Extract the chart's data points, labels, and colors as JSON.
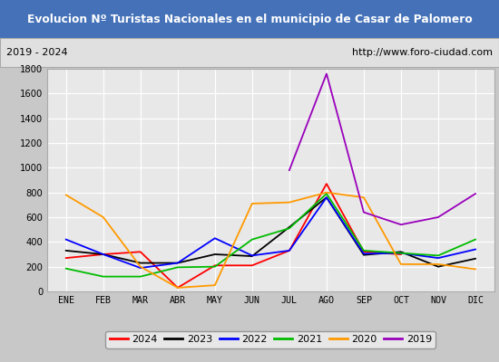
{
  "title": "Evolucion Nº Turistas Nacionales en el municipio de Casar de Palomero",
  "subtitle_left": "2019 - 2024",
  "subtitle_right": "http://www.foro-ciudad.com",
  "months": [
    "ENE",
    "FEB",
    "MAR",
    "ABR",
    "MAY",
    "JUN",
    "JUL",
    "AGO",
    "SEP",
    "OCT",
    "NOV",
    "DIC"
  ],
  "ylim": [
    0,
    1800
  ],
  "yticks": [
    0,
    200,
    400,
    600,
    800,
    1000,
    1200,
    1400,
    1600,
    1800
  ],
  "series": {
    "2024": {
      "color": "#ff0000",
      "values": [
        270,
        300,
        320,
        30,
        210,
        210,
        330,
        870,
        320,
        300,
        null,
        null
      ]
    },
    "2023": {
      "color": "#000000",
      "values": [
        330,
        300,
        230,
        230,
        300,
        285,
        520,
        760,
        295,
        320,
        200,
        265
      ]
    },
    "2022": {
      "color": "#0000ff",
      "values": [
        420,
        300,
        190,
        230,
        430,
        290,
        330,
        760,
        305,
        310,
        270,
        340
      ]
    },
    "2021": {
      "color": "#00bb00",
      "values": [
        185,
        120,
        120,
        195,
        200,
        420,
        510,
        790,
        330,
        310,
        290,
        420
      ]
    },
    "2020": {
      "color": "#ff9900",
      "values": [
        780,
        600,
        200,
        30,
        50,
        710,
        720,
        800,
        760,
        220,
        220,
        180
      ]
    },
    "2019": {
      "color": "#9900bb",
      "values": [
        null,
        null,
        null,
        null,
        null,
        null,
        980,
        1760,
        640,
        540,
        600,
        790
      ]
    }
  },
  "legend_order": [
    "2024",
    "2023",
    "2022",
    "2021",
    "2020",
    "2019"
  ],
  "title_bg_color": "#4471b8",
  "title_font_color": "#ffffff",
  "subtitle_bg_color": "#e0e0e0",
  "plot_bg_color": "#e8e8e8",
  "grid_color": "#ffffff",
  "border_color": "#aaaaaa",
  "fig_bg_color": "#c8c8c8"
}
